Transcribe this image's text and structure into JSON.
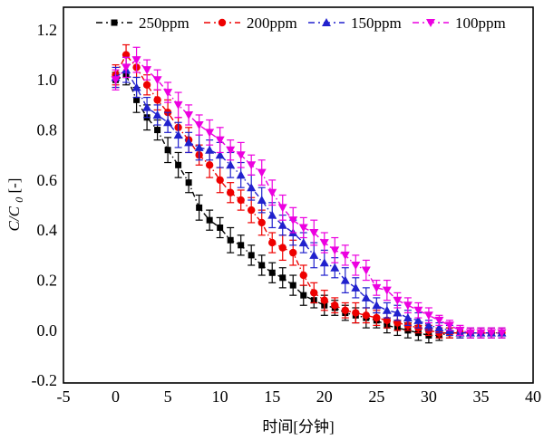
{
  "figure": {
    "ylabel": {
      "main": "C/C",
      "sub": "0",
      "unit": " [-]"
    }
  },
  "chart_data": {
    "type": "line",
    "subtype": "scatter-line-with-errorbars",
    "title": "",
    "xlabel": "时间[分钟]",
    "ylabel": "C/C0 [-]",
    "xlim": [
      -5,
      40
    ],
    "ylim": [
      -0.21,
      1.29
    ],
    "x_ticks": [
      "-5",
      "0",
      "5",
      "10",
      "15",
      "20",
      "25",
      "30",
      "35",
      "40"
    ],
    "x_tick_values": [
      -5,
      0,
      5,
      10,
      15,
      20,
      25,
      30,
      35,
      40
    ],
    "y_ticks": [
      "-0.2",
      "0.0",
      "0.2",
      "0.4",
      "0.6",
      "0.8",
      "1.0",
      "1.2"
    ],
    "y_tick_values": [
      -0.2,
      0.0,
      0.2,
      0.4,
      0.6,
      0.8,
      1.0,
      1.2
    ],
    "grid": false,
    "legend_position": "top",
    "line_style": "dash-dot",
    "x": [
      0,
      1,
      2,
      3,
      4,
      5,
      6,
      7,
      8,
      9,
      10,
      11,
      12,
      13,
      14,
      15,
      16,
      17,
      18,
      19,
      20,
      21,
      22,
      23,
      24,
      25,
      26,
      27,
      28,
      29,
      30,
      31,
      32,
      33,
      34,
      35,
      36,
      37
    ],
    "series": [
      {
        "name": "250ppm",
        "marker": "square",
        "color": "#000000",
        "values": [
          1.0,
          1.02,
          0.92,
          0.85,
          0.8,
          0.72,
          0.66,
          0.59,
          0.49,
          0.44,
          0.41,
          0.36,
          0.34,
          0.3,
          0.26,
          0.23,
          0.21,
          0.18,
          0.14,
          0.12,
          0.1,
          0.09,
          0.07,
          0.06,
          0.05,
          0.04,
          0.02,
          0.01,
          0.0,
          -0.01,
          -0.02,
          -0.02,
          -0.01,
          -0.01,
          -0.01,
          -0.01,
          -0.01,
          -0.01
        ],
        "errors": [
          0.03,
          0.04,
          0.05,
          0.05,
          0.04,
          0.05,
          0.05,
          0.04,
          0.05,
          0.04,
          0.04,
          0.05,
          0.04,
          0.04,
          0.04,
          0.04,
          0.04,
          0.04,
          0.04,
          0.03,
          0.04,
          0.03,
          0.03,
          0.03,
          0.04,
          0.03,
          0.03,
          0.03,
          0.03,
          0.03,
          0.03,
          0.02,
          0.02,
          0.02,
          0.02,
          0.02,
          0.02,
          0.02
        ]
      },
      {
        "name": "200ppm",
        "marker": "circle",
        "color": "#ee0000",
        "values": [
          1.02,
          1.1,
          1.05,
          0.98,
          0.92,
          0.87,
          0.81,
          0.76,
          0.7,
          0.66,
          0.6,
          0.55,
          0.52,
          0.48,
          0.43,
          0.35,
          0.33,
          0.31,
          0.22,
          0.15,
          0.12,
          0.1,
          0.08,
          0.07,
          0.06,
          0.05,
          0.04,
          0.03,
          0.02,
          0.01,
          0.0,
          -0.01,
          -0.01,
          -0.01,
          -0.01,
          -0.01,
          -0.01,
          -0.01
        ],
        "errors": [
          0.04,
          0.04,
          0.04,
          0.04,
          0.04,
          0.05,
          0.04,
          0.05,
          0.04,
          0.05,
          0.05,
          0.04,
          0.04,
          0.05,
          0.05,
          0.04,
          0.05,
          0.05,
          0.04,
          0.04,
          0.04,
          0.03,
          0.03,
          0.04,
          0.03,
          0.03,
          0.03,
          0.03,
          0.02,
          0.02,
          0.02,
          0.02,
          0.02,
          0.02,
          0.02,
          0.02,
          0.02,
          0.02
        ]
      },
      {
        "name": "150ppm",
        "marker": "triangle-up",
        "color": "#2121cd",
        "values": [
          1.01,
          1.04,
          0.97,
          0.89,
          0.86,
          0.83,
          0.78,
          0.75,
          0.73,
          0.72,
          0.7,
          0.66,
          0.62,
          0.57,
          0.52,
          0.46,
          0.42,
          0.39,
          0.35,
          0.3,
          0.27,
          0.25,
          0.2,
          0.17,
          0.13,
          0.1,
          0.08,
          0.07,
          0.05,
          0.04,
          0.02,
          0.01,
          0.0,
          -0.01,
          -0.01,
          -0.01,
          -0.01,
          -0.01
        ],
        "errors": [
          0.04,
          0.05,
          0.04,
          0.04,
          0.04,
          0.04,
          0.05,
          0.04,
          0.05,
          0.04,
          0.05,
          0.05,
          0.05,
          0.05,
          0.05,
          0.05,
          0.04,
          0.05,
          0.04,
          0.05,
          0.05,
          0.04,
          0.05,
          0.04,
          0.04,
          0.03,
          0.03,
          0.03,
          0.03,
          0.03,
          0.02,
          0.02,
          0.02,
          0.02,
          0.02,
          0.02,
          0.02,
          0.02
        ]
      },
      {
        "name": "100ppm",
        "marker": "triangle-down",
        "color": "#ec00e0",
        "values": [
          1.0,
          1.05,
          1.08,
          1.04,
          1.0,
          0.95,
          0.9,
          0.86,
          0.82,
          0.79,
          0.76,
          0.72,
          0.7,
          0.66,
          0.63,
          0.55,
          0.49,
          0.44,
          0.41,
          0.39,
          0.35,
          0.32,
          0.3,
          0.26,
          0.24,
          0.17,
          0.16,
          0.12,
          0.1,
          0.08,
          0.06,
          0.04,
          0.02,
          0.0,
          -0.01,
          -0.01,
          -0.01,
          -0.01
        ],
        "errors": [
          0.04,
          0.04,
          0.05,
          0.04,
          0.04,
          0.04,
          0.05,
          0.04,
          0.04,
          0.05,
          0.05,
          0.04,
          0.05,
          0.04,
          0.05,
          0.05,
          0.05,
          0.05,
          0.04,
          0.05,
          0.04,
          0.05,
          0.04,
          0.04,
          0.04,
          0.03,
          0.04,
          0.03,
          0.03,
          0.03,
          0.03,
          0.02,
          0.02,
          0.02,
          0.02,
          0.02,
          0.02,
          0.02
        ]
      }
    ]
  }
}
